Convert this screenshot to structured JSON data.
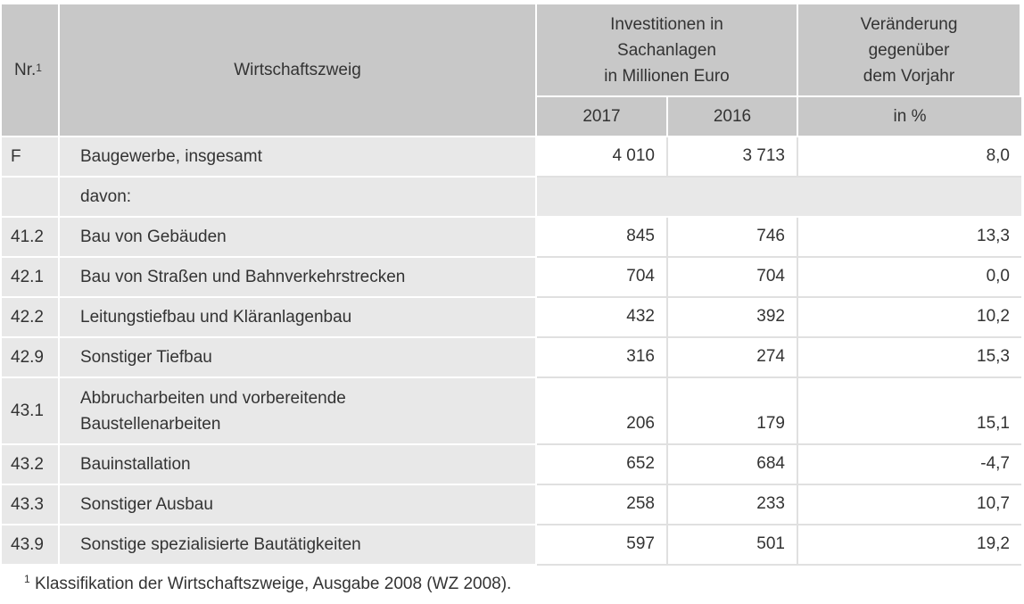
{
  "table": {
    "headers": {
      "nr": "Nr.",
      "nr_sup": "1",
      "branch": "Wirtschaftszweig",
      "invest_line1": "Investitionen in",
      "invest_line2": "Sachanlagen",
      "invest_line3": "in Millionen Euro",
      "change_line1": "Veränderung",
      "change_line2": "gegenüber",
      "change_line3": "dem Vorjahr",
      "year_2017": "2017",
      "year_2016": "2016",
      "unit_pct": "in %"
    },
    "total_row": {
      "nr": "F",
      "label": "Baugewerbe, insgesamt",
      "v2017": "4 010",
      "v2016": "3 713",
      "change": "8,0"
    },
    "davon_label": "davon:",
    "rows": [
      {
        "nr": "41.2",
        "label": "Bau von Gebäuden",
        "v2017": "845",
        "v2016": "746",
        "change": "13,3"
      },
      {
        "nr": "42.1",
        "label": "Bau von Straßen und Bahnverkehrstrecken",
        "v2017": "704",
        "v2016": "704",
        "change": "0,0"
      },
      {
        "nr": "42.2",
        "label": "Leitungstiefbau und Kläranlagenbau",
        "v2017": "432",
        "v2016": "392",
        "change": "10,2"
      },
      {
        "nr": "42.9",
        "label": "Sonstiger Tiefbau",
        "v2017": "316",
        "v2016": "274",
        "change": "15,3"
      },
      {
        "nr": "43.1",
        "label_line1": "Abbrucharbeiten und vorbereitende",
        "label_line2": "Baustellenarbeiten",
        "v2017": "206",
        "v2016": "179",
        "change": "15,1"
      },
      {
        "nr": "43.2",
        "label": "Bauinstallation",
        "v2017": "652",
        "v2016": "684",
        "change": "-4,7"
      },
      {
        "nr": "43.3",
        "label": "Sonstiger Ausbau",
        "v2017": "258",
        "v2016": "233",
        "change": "10,7"
      },
      {
        "nr": "43.9",
        "label": "Sonstige spezialisierte Bautätigkeiten",
        "v2017": "597",
        "v2016": "501",
        "change": "19,2"
      }
    ]
  },
  "footnote": {
    "sup": "1",
    "text": "Klassifikation der Wirtschaftszweige, Ausgabe 2008 (WZ 2008)."
  }
}
